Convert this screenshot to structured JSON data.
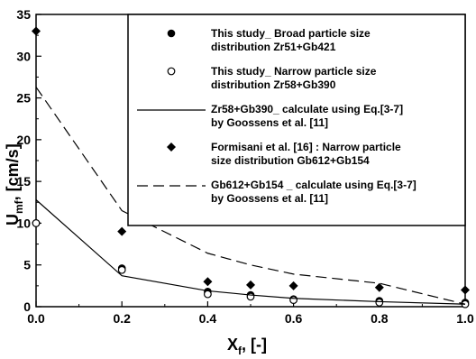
{
  "chart_data": {
    "type": "scatter",
    "xlabel_main": "X",
    "xlabel_sub": "f",
    "xlabel_tail": ", [-]",
    "ylabel_main": "U",
    "ylabel_sub": "mf",
    "ylabel_tail": ", [cm/s]",
    "xlim": [
      0.0,
      1.0
    ],
    "ylim": [
      0,
      35
    ],
    "xticks": [
      "0.0",
      "0.2",
      "0.4",
      "0.6",
      "0.8",
      "1.0"
    ],
    "yticks": [
      "0",
      "5",
      "10",
      "15",
      "20",
      "25",
      "30",
      "35"
    ],
    "grid": false,
    "legend_position": "top-right",
    "series": [
      {
        "name_lines": [
          "This study_ Broad particle size",
          "distribution Zr51+Gb421"
        ],
        "style": "filled-circle",
        "x": [
          0.0,
          0.2,
          0.4,
          0.5,
          0.6,
          0.8,
          1.0
        ],
        "y": [
          10.0,
          4.6,
          1.8,
          1.4,
          0.9,
          0.7,
          0.5
        ]
      },
      {
        "name_lines": [
          "This study_ Narrow particle size",
          "distribution Zr58+Gb390"
        ],
        "style": "open-circle",
        "x": [
          0.0,
          0.2,
          0.4,
          0.5,
          0.6,
          0.8,
          1.0
        ],
        "y": [
          10.0,
          4.4,
          1.5,
          1.2,
          0.8,
          0.5,
          0.3
        ]
      },
      {
        "name_lines": [
          " Zr58+Gb390_ calculate using Eq.[3-7]",
          "by Goossens et al. [11]"
        ],
        "style": "solid-line",
        "x": [
          0.0,
          0.2,
          0.4,
          0.5,
          0.6,
          0.8,
          1.0
        ],
        "y": [
          12.8,
          3.7,
          1.9,
          1.4,
          1.0,
          0.6,
          0.3
        ]
      },
      {
        "name_lines": [
          "Formisani et al. [16] : Narrow particle",
          "size distribution Gb612+Gb154"
        ],
        "style": "filled-diamond",
        "x": [
          0.0,
          0.2,
          0.4,
          0.5,
          0.6,
          0.8,
          1.0
        ],
        "y": [
          33.0,
          9.0,
          3.0,
          2.6,
          2.5,
          2.3,
          2.0
        ]
      },
      {
        "name_lines": [
          "Gb612+Gb154 _ calculate using Eq.[3-7]",
          "by Goossens et al. [11]"
        ],
        "style": "dashed-line",
        "x": [
          0.0,
          0.2,
          0.4,
          0.5,
          0.6,
          0.8,
          1.0
        ],
        "y": [
          26.3,
          11.5,
          6.4,
          5.0,
          3.9,
          2.8,
          0.3
        ]
      }
    ]
  }
}
